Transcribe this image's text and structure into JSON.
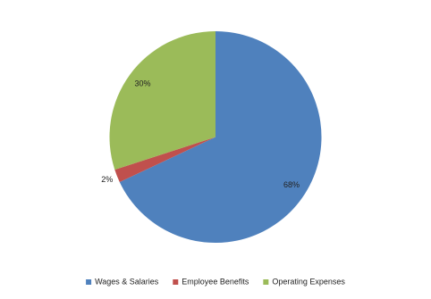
{
  "chart_data": {
    "type": "pie",
    "categories": [
      "Wages & Salaries",
      "Employee Benefits",
      "Operating Expenses"
    ],
    "values": [
      68,
      2,
      30
    ],
    "value_labels": [
      "68%",
      "2%",
      "30%"
    ],
    "colors": [
      "#4f81bd",
      "#c0504d",
      "#9bbb59"
    ]
  }
}
